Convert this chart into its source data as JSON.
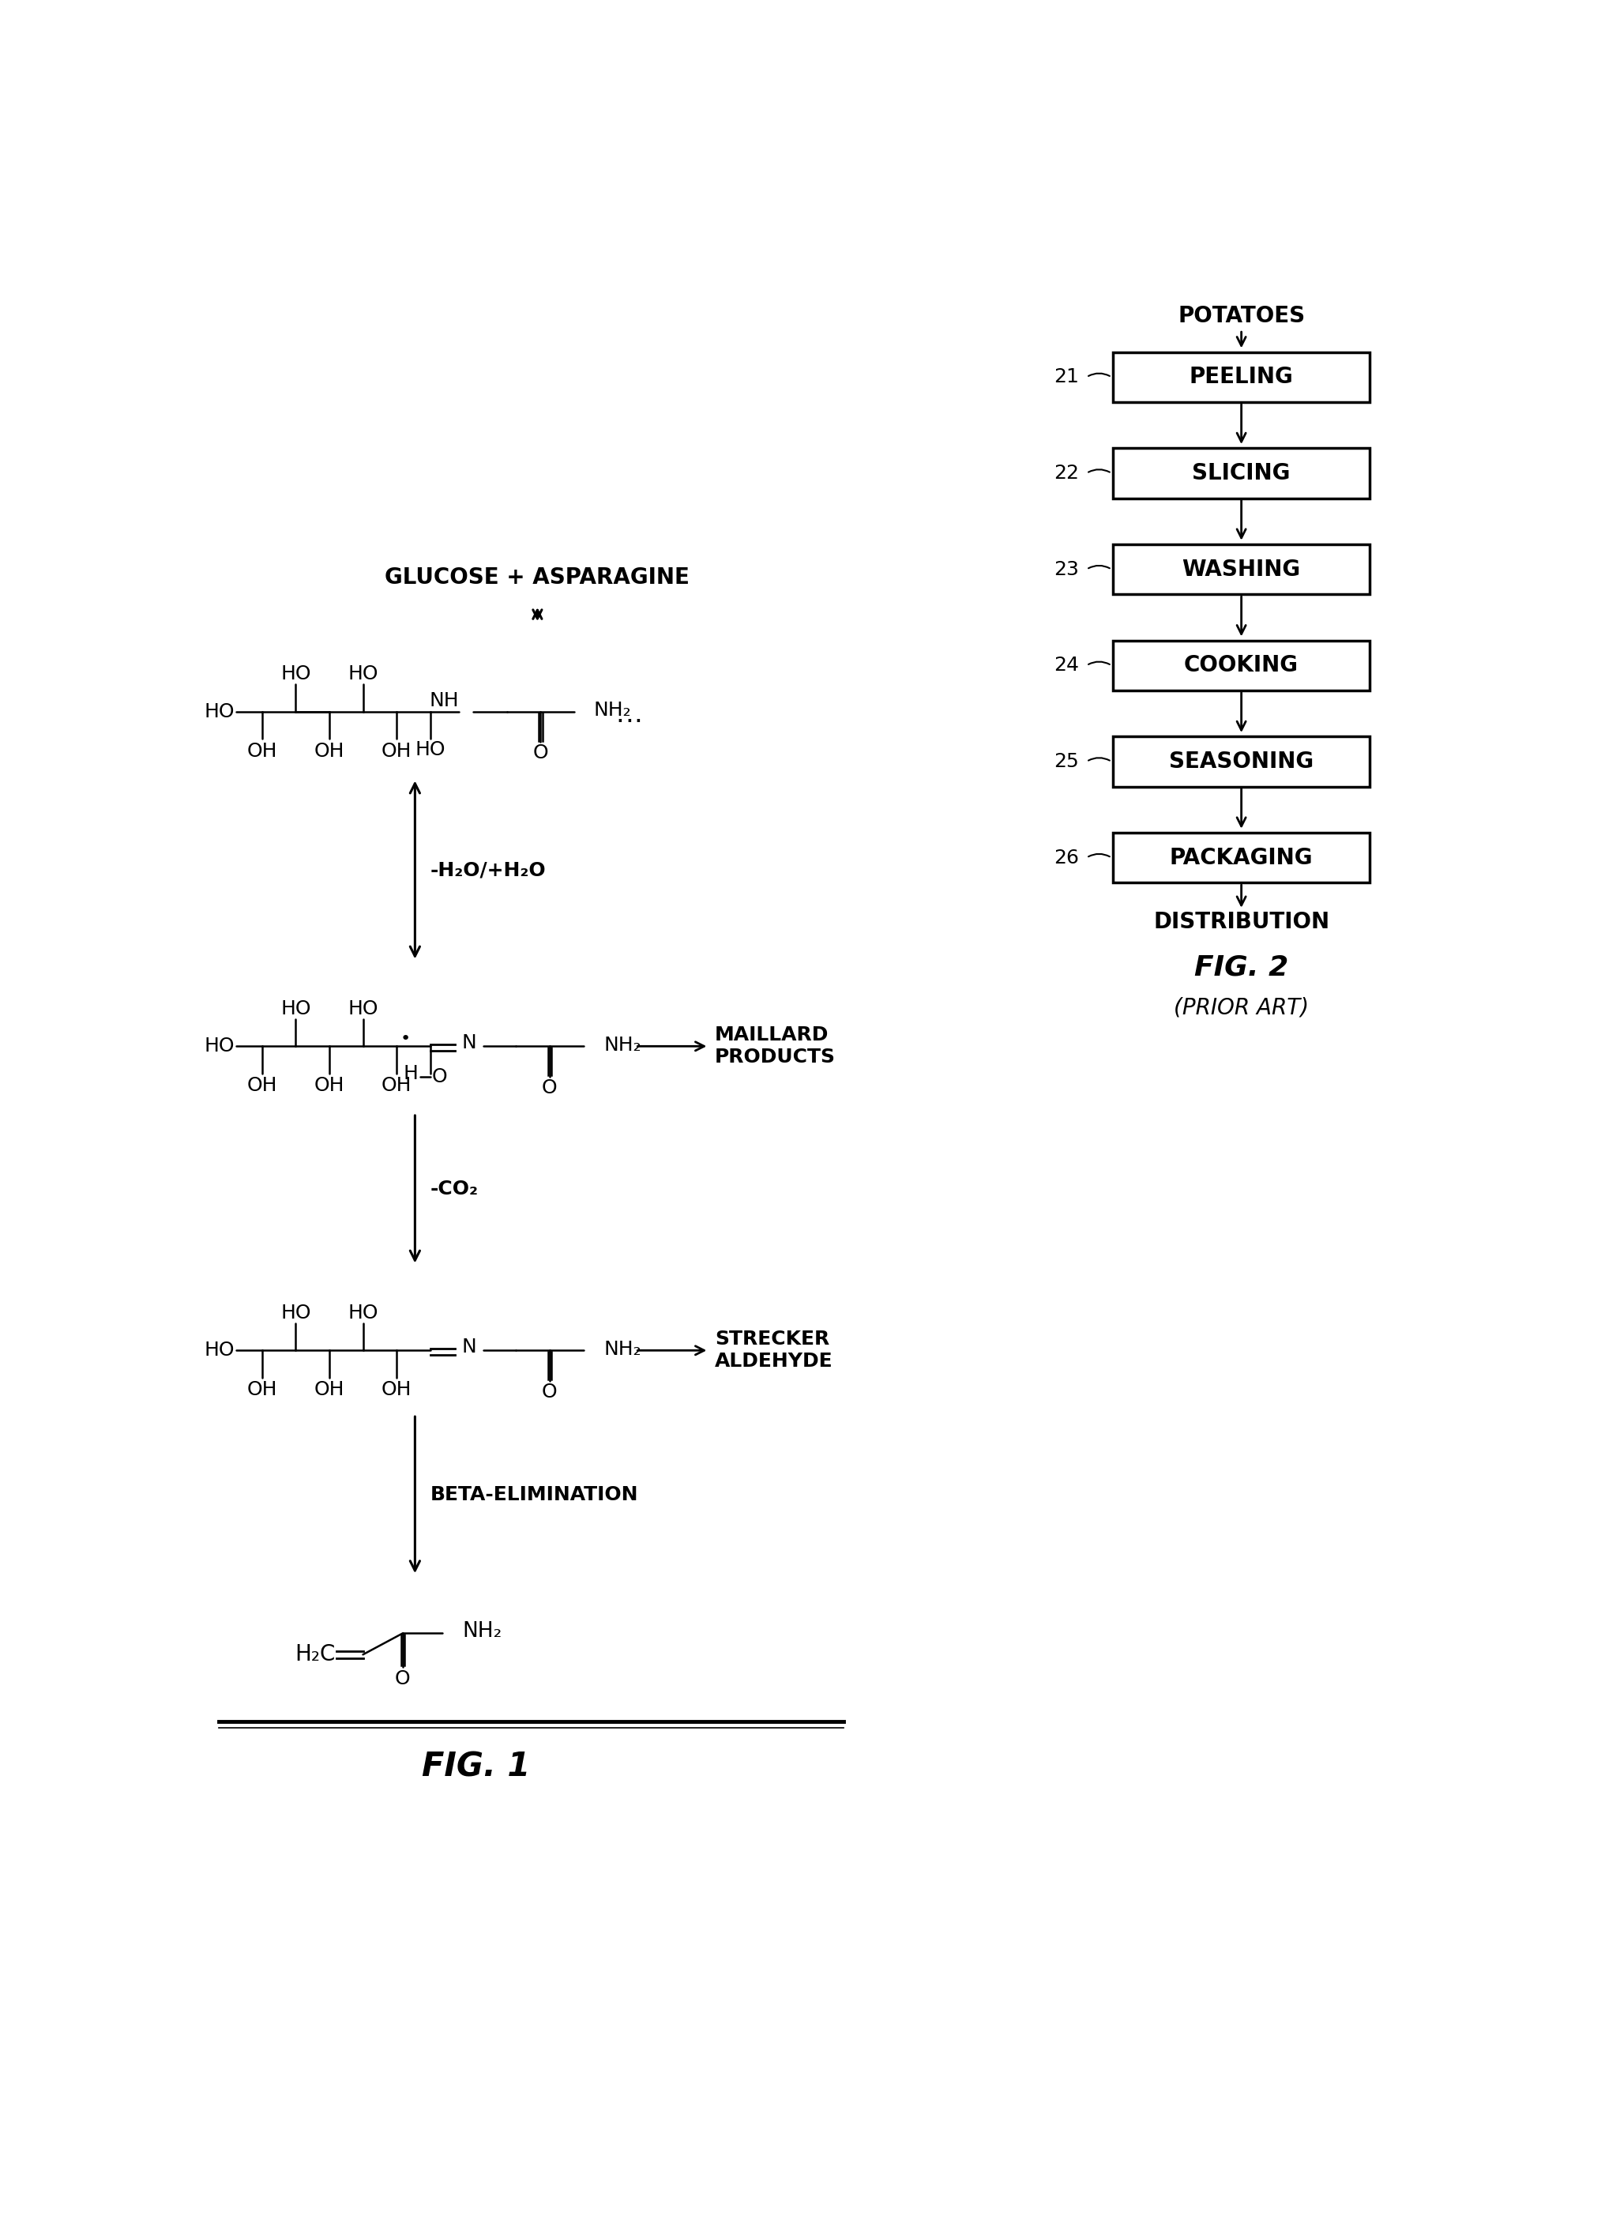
{
  "fig_label": "FIG. 1",
  "fig2_label": "FIG. 2",
  "fig2_subtitle": "(PRIOR ART)",
  "background_color": "#ffffff",
  "flow_steps": [
    "PEELING",
    "SLICING",
    "WASHING",
    "COOKING",
    "SEASONING",
    "PACKAGING"
  ],
  "flow_numbers": [
    "21",
    "22",
    "23",
    "24",
    "25",
    "26"
  ],
  "flow_top_label": "POTATOES",
  "flow_bottom_label": "DISTRIBUTION",
  "glucose_asparagine": "GLUCOSE + ASPARAGINE",
  "arrow1_label": "-H₂O/+H₂O",
  "arrow2_label": "-CO₂",
  "arrow3_label": "BETA-ELIMINATION",
  "maillard_label": "MAILLARD\nPRODUCTS",
  "strecker_label": "STRECKER\nALDEHYDE",
  "font_size_mol": 18,
  "font_size_box": 20,
  "font_size_label": 18,
  "font_size_fig": 26
}
